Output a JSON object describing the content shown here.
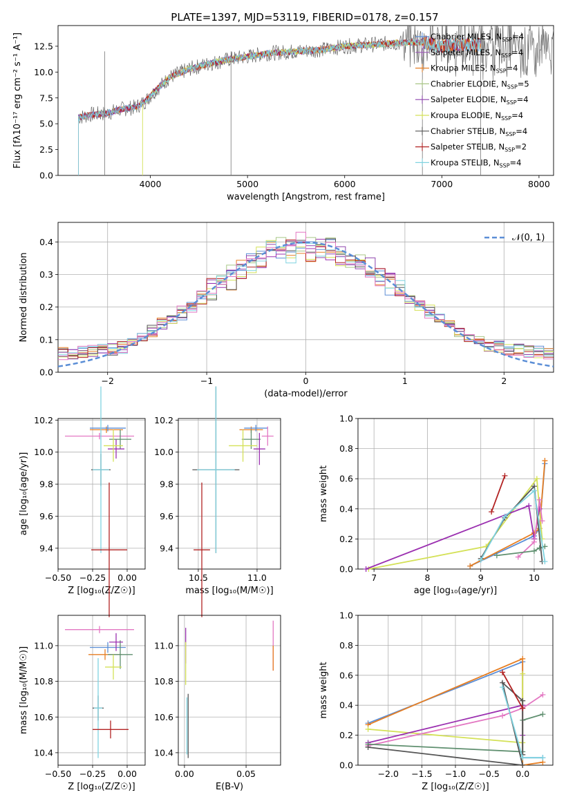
{
  "figure": {
    "title": "PLATE=1397, MJD=53119, FIBERID=0178, z=0.157"
  },
  "chart_data": [
    {
      "id": "spectrum",
      "type": "line",
      "xlabel": "wavelength [Angstrom, rest frame]",
      "ylabel": "Flux [f_λ 10^-17 erg cm^-2 s^-1 A^-1]",
      "xlim": [
        3050,
        8150
      ],
      "ylim": [
        0,
        14.5
      ],
      "xticks": [
        4000,
        5000,
        6000,
        7000,
        8000
      ],
      "yticks": [
        0.0,
        2.5,
        5.0,
        7.5,
        10.0,
        12.5
      ],
      "grid": false,
      "legend_position": "right",
      "series": [
        {
          "name": "Chabrier MILES, N_SSP=4",
          "color": "#5b8ed6"
        },
        {
          "name": "Salpeter MILES, N_SSP=4",
          "color": "#9b59b6"
        },
        {
          "name": "Kroupa MILES, N_SSP=4",
          "color": "#e67e22"
        },
        {
          "name": "Chabrier ELODIE, N_SSP=5",
          "color": "#a8c686"
        },
        {
          "name": "Salpeter ELODIE, N_SSP=4",
          "color": "#8e44ad"
        },
        {
          "name": "Kroupa ELODIE, N_SSP=4",
          "color": "#d4e157"
        },
        {
          "name": "Chabrier STELIB, N_SSP=4",
          "color": "#555555"
        },
        {
          "name": "Salpeter STELIB, N_SSP=2",
          "color": "#b22222"
        },
        {
          "name": "Kroupa STELIB, N_SSP=4",
          "color": "#7fd3e0"
        }
      ],
      "continuum": {
        "x": [
          3260,
          3400,
          3550,
          3700,
          3850,
          3950,
          4050,
          4200,
          4400,
          4600,
          4800,
          5000,
          5200,
          5500,
          5800,
          6000,
          6200,
          6500,
          6800,
          7000,
          7200,
          7500,
          7800,
          8000,
          8150
        ],
        "y": [
          5.6,
          5.9,
          6.0,
          6.4,
          6.6,
          7.2,
          8.2,
          9.5,
          10.3,
          10.8,
          11.2,
          11.5,
          11.8,
          12.0,
          12.2,
          12.5,
          12.6,
          12.8,
          12.9,
          12.5,
          12.7,
          12.6,
          12.4,
          12.3,
          12.2
        ]
      }
    },
    {
      "id": "residuals",
      "type": "area",
      "xlabel": "(data-model)/error",
      "ylabel": "Normed distribution",
      "xlim": [
        -2.5,
        2.5
      ],
      "ylim": [
        0,
        0.46
      ],
      "xticks": [
        -2,
        -1,
        0,
        1,
        2
      ],
      "yticks": [
        0.0,
        0.1,
        0.2,
        0.3,
        0.4
      ],
      "grid": true,
      "legend": "𝒩(0, 1)",
      "legend_position": "top-right",
      "bin_width": 0.1
    },
    {
      "id": "age-vs-Z",
      "type": "scatter",
      "xlabel": "Z [log10(Z/Z☉)]",
      "ylabel": "age [log10(age/yr)]",
      "xlim": [
        -0.5,
        0.13
      ],
      "ylim": [
        9.27,
        10.21
      ],
      "xticks": [
        -0.5,
        -0.25,
        0.0
      ],
      "yticks": [
        9.4,
        9.6,
        9.8,
        10.0,
        10.2
      ],
      "points": [
        {
          "x": -0.15,
          "y": 10.14,
          "dx": 0.12,
          "dy": 0.02,
          "c": "#e67e22"
        },
        {
          "x": -0.14,
          "y": 10.15,
          "dx": 0.13,
          "dy": 0.02,
          "c": "#5b8ed6"
        },
        {
          "x": -0.2,
          "y": 10.1,
          "dx": 0.25,
          "dy": 0.02,
          "c": "#e377c2"
        },
        {
          "x": -0.05,
          "y": 10.08,
          "dx": 0.08,
          "dy": 0.06,
          "c": "#5f8f6f"
        },
        {
          "x": -0.08,
          "y": 10.02,
          "dx": 0.06,
          "dy": 0.06,
          "c": "#9b30b0"
        },
        {
          "x": -0.1,
          "y": 10.04,
          "dx": 0.07,
          "dy": 0.1,
          "c": "#d4e157"
        },
        {
          "x": -0.19,
          "y": 9.89,
          "dx": 0.07,
          "dy": 0.1,
          "c": "#555555"
        },
        {
          "x": -0.19,
          "y": 9.89,
          "dx": 0.06,
          "dy": 0.52,
          "c": "#7fd3e0"
        },
        {
          "x": -0.13,
          "y": 9.39,
          "dx": 0.13,
          "dy": 0.42,
          "c": "#b22222"
        }
      ]
    },
    {
      "id": "age-vs-mass",
      "type": "scatter",
      "xlabel": "mass [log10(M/M☉)]",
      "ylabel": "",
      "xlim": [
        10.33,
        11.2
      ],
      "ylim": [
        9.27,
        10.21
      ],
      "xticks": [
        10.5,
        11.0
      ],
      "yticks": [
        9.4,
        9.6,
        9.8,
        10.0,
        10.2
      ],
      "points": [
        {
          "x": 10.95,
          "y": 10.14,
          "dx": 0.1,
          "dy": 0.02,
          "c": "#e67e22"
        },
        {
          "x": 10.99,
          "y": 10.15,
          "dx": 0.1,
          "dy": 0.02,
          "c": "#5b8ed6"
        },
        {
          "x": 11.09,
          "y": 10.1,
          "dx": 0.05,
          "dy": 0.06,
          "c": "#e377c2"
        },
        {
          "x": 10.95,
          "y": 10.08,
          "dx": 0.08,
          "dy": 0.06,
          "c": "#5f8f6f"
        },
        {
          "x": 11.02,
          "y": 10.02,
          "dx": 0.05,
          "dy": 0.1,
          "c": "#9b30b0"
        },
        {
          "x": 10.88,
          "y": 10.04,
          "dx": 0.12,
          "dy": 0.1,
          "c": "#d4e157"
        },
        {
          "x": 10.65,
          "y": 9.89,
          "dx": 0.2,
          "dy": 0.52,
          "c": "#555555"
        },
        {
          "x": 10.65,
          "y": 9.89,
          "dx": 0.16,
          "dy": 0.52,
          "c": "#7fd3e0"
        },
        {
          "x": 10.53,
          "y": 9.39,
          "dx": 0.07,
          "dy": 0.42,
          "c": "#b22222"
        }
      ]
    },
    {
      "id": "mass-weight-vs-age",
      "type": "line",
      "xlabel": "age [log10(age/yr)]",
      "ylabel": "mass weight",
      "xlim": [
        6.7,
        10.35
      ],
      "ylim": [
        0.0,
        1.0
      ],
      "xticks": [
        7,
        8,
        9,
        10
      ],
      "yticks": [
        0.0,
        0.2,
        0.4,
        0.6,
        0.8,
        1.0
      ],
      "series": [
        {
          "c": "#5b8ed6",
          "x": [
            8.8,
            10.0,
            10.1,
            10.2
          ],
          "y": [
            0.02,
            0.22,
            0.27,
            0.7
          ]
        },
        {
          "c": "#e67e22",
          "x": [
            8.8,
            10.0,
            10.1,
            10.2
          ],
          "y": [
            0.02,
            0.24,
            0.27,
            0.72
          ]
        },
        {
          "c": "#d4e157",
          "x": [
            6.9,
            9.1,
            10.05,
            10.15
          ],
          "y": [
            0.0,
            0.15,
            0.6,
            0.2
          ]
        },
        {
          "c": "#9b30b0",
          "x": [
            6.85,
            9.9,
            10.0,
            10.1
          ],
          "y": [
            0.0,
            0.42,
            0.2,
            0.4
          ]
        },
        {
          "c": "#e377c2",
          "x": [
            9.7,
            10.0,
            10.1,
            10.15
          ],
          "y": [
            0.08,
            0.18,
            0.46,
            0.32
          ]
        },
        {
          "c": "#5f8f6f",
          "x": [
            9.3,
            10.0,
            10.1,
            10.2
          ],
          "y": [
            0.09,
            0.12,
            0.14,
            0.15
          ]
        },
        {
          "c": "#555555",
          "x": [
            9.0,
            9.45,
            10.0,
            10.15
          ],
          "y": [
            0.07,
            0.34,
            0.55,
            0.05
          ]
        },
        {
          "c": "#7fd3e0",
          "x": [
            9.0,
            9.45,
            10.0,
            10.2
          ],
          "y": [
            0.06,
            0.35,
            0.52,
            0.05
          ]
        },
        {
          "c": "#b22222",
          "x": [
            9.2,
            9.45
          ],
          "y": [
            0.38,
            0.62
          ]
        }
      ]
    },
    {
      "id": "mass-vs-Z",
      "type": "scatter",
      "xlabel": "Z [log10(Z/Z☉)]",
      "ylabel": "mass [log10(M/M☉)]",
      "xlim": [
        -0.5,
        0.13
      ],
      "ylim": [
        10.33,
        11.17
      ],
      "xticks": [
        -0.5,
        -0.25,
        0.0
      ],
      "yticks": [
        10.4,
        10.6,
        10.8,
        11.0
      ],
      "points": [
        {
          "x": -0.14,
          "y": 10.99,
          "dx": 0.13,
          "dy": 0.03,
          "c": "#5b8ed6"
        },
        {
          "x": -0.16,
          "y": 10.95,
          "dx": 0.12,
          "dy": 0.03,
          "c": "#e67e22"
        },
        {
          "x": -0.2,
          "y": 11.09,
          "dx": 0.25,
          "dy": 0.02,
          "c": "#e377c2"
        },
        {
          "x": -0.05,
          "y": 10.95,
          "dx": 0.09,
          "dy": 0.08,
          "c": "#5f8f6f"
        },
        {
          "x": -0.08,
          "y": 11.02,
          "dx": 0.05,
          "dy": 0.05,
          "c": "#9b30b0"
        },
        {
          "x": -0.1,
          "y": 10.88,
          "dx": 0.06,
          "dy": 0.07,
          "c": "#d4e157"
        },
        {
          "x": -0.21,
          "y": 10.65,
          "dx": 0.04,
          "dy": 0.07,
          "c": "#555555"
        },
        {
          "x": -0.21,
          "y": 10.65,
          "dx": 0.03,
          "dy": 0.28,
          "c": "#7fd3e0"
        },
        {
          "x": -0.12,
          "y": 10.53,
          "dx": 0.13,
          "dy": 0.05,
          "c": "#b22222"
        }
      ]
    },
    {
      "id": "mass-vs-EBV",
      "type": "scatter",
      "xlabel": "E(B-V)",
      "ylabel": "",
      "xlim": [
        -0.005,
        0.078
      ],
      "ylim": [
        10.33,
        11.17
      ],
      "xticks": [
        0.0,
        0.05
      ],
      "yticks": [
        10.4,
        10.6,
        10.8,
        11.0
      ],
      "points": [
        {
          "x": 0.072,
          "y": 11.0,
          "dx": 0.0,
          "dy": 0.14,
          "c": "#e377c2"
        },
        {
          "x": 0.072,
          "y": 10.93,
          "dx": 0.0,
          "dy": 0.07,
          "c": "#e67e22"
        },
        {
          "x": 0.001,
          "y": 11.0,
          "dx": 0.0,
          "dy": 0.1,
          "c": "#9b30b0"
        },
        {
          "x": 0.001,
          "y": 10.9,
          "dx": 0.0,
          "dy": 0.12,
          "c": "#d4e157"
        },
        {
          "x": 0.003,
          "y": 10.55,
          "dx": 0.0,
          "dy": 0.18,
          "c": "#555555"
        },
        {
          "x": 0.002,
          "y": 10.55,
          "dx": 0.0,
          "dy": 0.16,
          "c": "#7fd3e0"
        }
      ]
    },
    {
      "id": "mass-weight-vs-Z",
      "type": "line",
      "xlabel": "Z [log10(Z/Z☉)]",
      "ylabel": "mass weight",
      "xlim": [
        -2.45,
        0.45
      ],
      "ylim": [
        0.0,
        1.0
      ],
      "xticks": [
        -2.0,
        -1.5,
        -1.0,
        -0.5,
        0.0
      ],
      "yticks": [
        0.0,
        0.2,
        0.4,
        0.6,
        0.8,
        1.0
      ],
      "series": [
        {
          "c": "#5b8ed6",
          "x": [
            -2.3,
            0.0,
            0.0,
            0.3
          ],
          "y": [
            0.28,
            0.69,
            0.05,
            0.05
          ]
        },
        {
          "c": "#e67e22",
          "x": [
            -2.3,
            0.0,
            0.0,
            0.3
          ],
          "y": [
            0.27,
            0.71,
            0.0,
            0.02
          ]
        },
        {
          "c": "#d4e157",
          "x": [
            -2.3,
            0.0,
            0.0
          ],
          "y": [
            0.24,
            0.15,
            0.61
          ]
        },
        {
          "c": "#9b30b0",
          "x": [
            -2.3,
            0.0,
            0.0
          ],
          "y": [
            0.15,
            0.4,
            0.2
          ]
        },
        {
          "c": "#e377c2",
          "x": [
            -2.3,
            -0.3,
            0.0,
            0.3
          ],
          "y": [
            0.13,
            0.33,
            0.38,
            0.47
          ]
        },
        {
          "c": "#5f8f6f",
          "x": [
            -2.3,
            0.0,
            0.0,
            0.3
          ],
          "y": [
            0.14,
            0.09,
            0.3,
            0.34
          ]
        },
        {
          "c": "#555555",
          "x": [
            -2.3,
            0.0,
            -0.3,
            0.0,
            0.0
          ],
          "y": [
            0.12,
            0.0,
            0.55,
            0.43,
            0.07
          ]
        },
        {
          "c": "#7fd3e0",
          "x": [
            -0.3,
            0.0,
            0.3
          ],
          "y": [
            0.52,
            0.05,
            0.05
          ]
        },
        {
          "c": "#b22222",
          "x": [
            -0.3,
            0.0
          ],
          "y": [
            0.62,
            0.38
          ]
        }
      ]
    }
  ]
}
